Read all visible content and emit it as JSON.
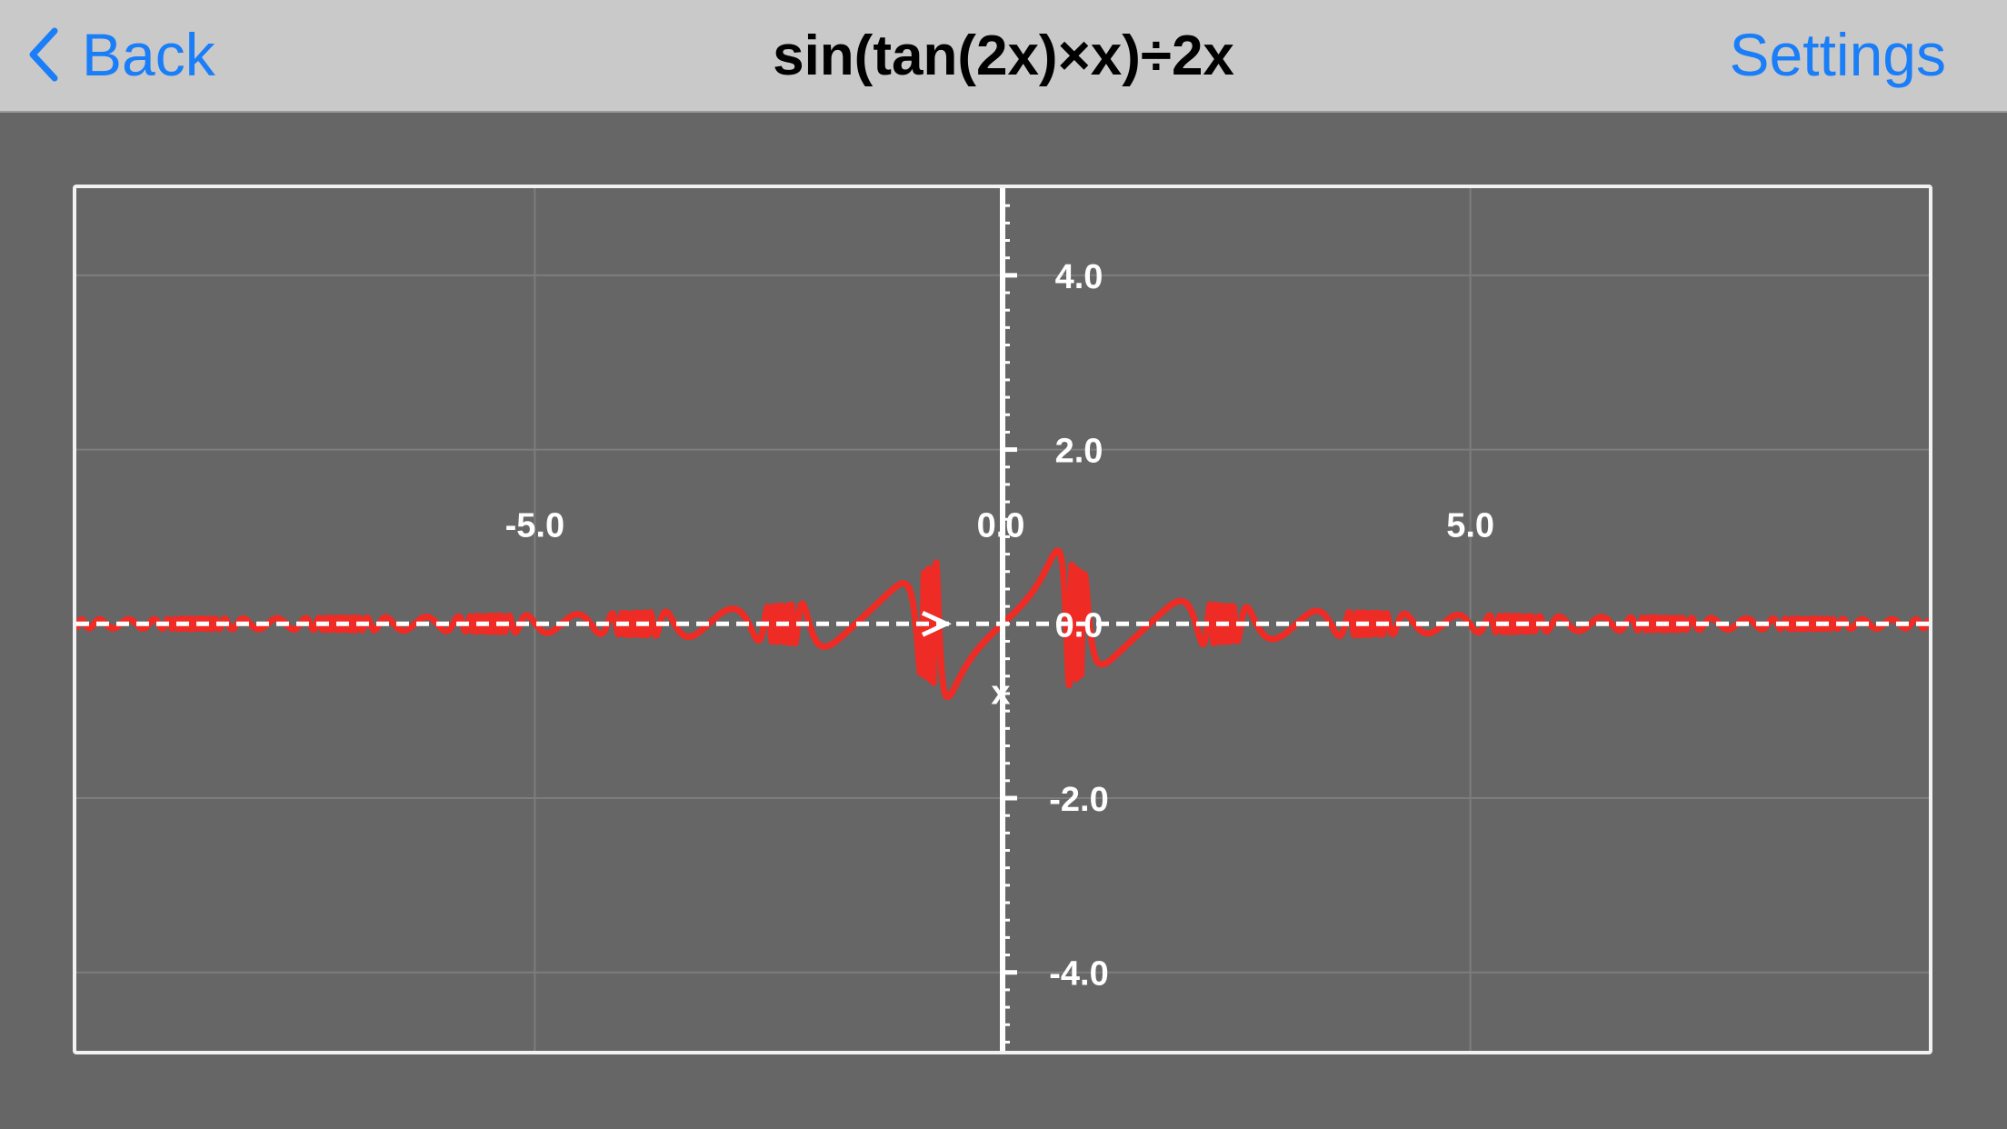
{
  "navbar": {
    "back_label": "Back",
    "title": "sin(tan(2x)×x)÷2x",
    "settings_label": "Settings",
    "accent_color": "#1a7ef8",
    "back_icon": "chevron-left-icon"
  },
  "chart_data": {
    "type": "line",
    "series": [
      {
        "expression": "sin(tan(2x)×x)÷2x",
        "color": "#ee2b24"
      }
    ],
    "xlim": [
      -9.9,
      9.9
    ],
    "ylim": [
      -4.9,
      5.0
    ],
    "x_ticks": [
      {
        "value": -5,
        "label": "-5.0"
      },
      {
        "value": 0,
        "label": "0.0"
      },
      {
        "value": 5,
        "label": "5.0"
      }
    ],
    "y_ticks": [
      {
        "value": 4,
        "label": "4.0"
      },
      {
        "value": 2,
        "label": "2.0"
      },
      {
        "value": 0,
        "label": "0.0"
      },
      {
        "value": -2,
        "label": "-2.0"
      },
      {
        "value": -4,
        "label": "-4.0"
      }
    ],
    "x_axis_name": "x",
    "grid": true,
    "background_color": "#666666",
    "grid_color": "#7d7d7d",
    "axis_color": "#ffffff"
  }
}
